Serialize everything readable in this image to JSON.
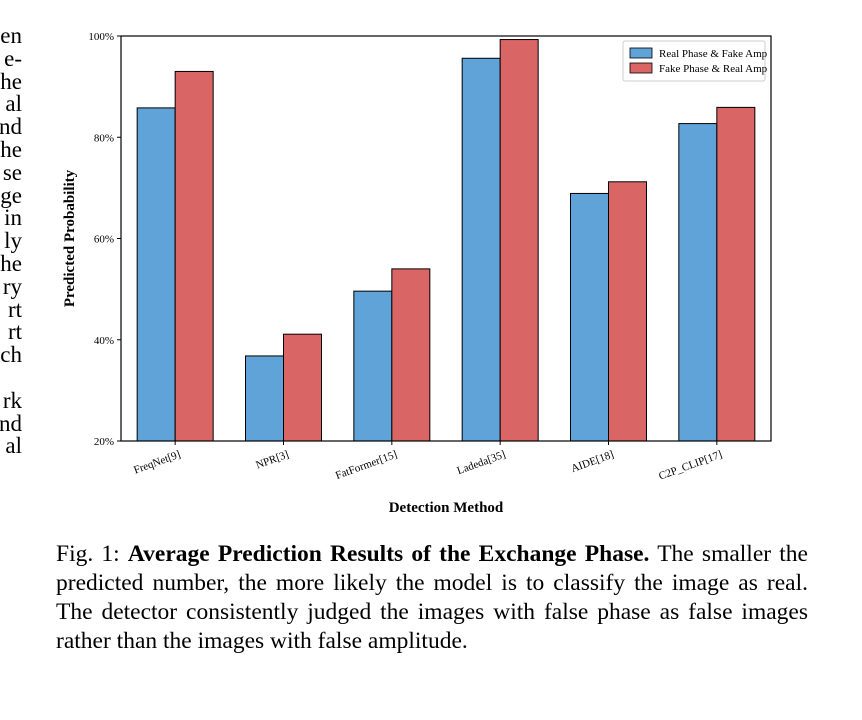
{
  "left_margin_fragments": [
    "en",
    "e-",
    "he",
    "al",
    "nd",
    "he",
    "se",
    "ge",
    "in",
    "ly",
    "he",
    "ry",
    "rt",
    "rt",
    "ch",
    "",
    "rk",
    "nd",
    "al"
  ],
  "caption": {
    "label": "Fig. 1:",
    "title": "Average Prediction Results of the Exchange Phase.",
    "body": "The smaller the predicted number, the more likely the model is to classify the image as real. The detector consistently judged the images with false phase as false images rather than the images with false amplitude."
  },
  "colors": {
    "series1": "#5fa3d8",
    "series2": "#d96565",
    "axis": "#000000"
  },
  "chart_data": {
    "type": "bar",
    "title": "",
    "xlabel": "Detection Method",
    "ylabel": "Predicted Probability",
    "ylim": [
      20,
      100
    ],
    "yticks": [
      "20%",
      "40%",
      "60%",
      "80%",
      "100%"
    ],
    "ytick_values": [
      20,
      40,
      60,
      80,
      100
    ],
    "categories": [
      "FreqNet[9]",
      "NPR[3]",
      "FatFormer[15]",
      "Ladeda[35]",
      "AIDE[18]",
      "C2P_CLIP[17]"
    ],
    "series": [
      {
        "name": "Real Phase & Fake Amp",
        "values": [
          85.8,
          36.8,
          49.6,
          95.6,
          68.9,
          82.7
        ]
      },
      {
        "name": "Fake Phase & Real Amp",
        "values": [
          93.0,
          41.1,
          54.0,
          99.3,
          71.2,
          85.9
        ]
      }
    ],
    "grid": false,
    "legend": "top-right"
  }
}
